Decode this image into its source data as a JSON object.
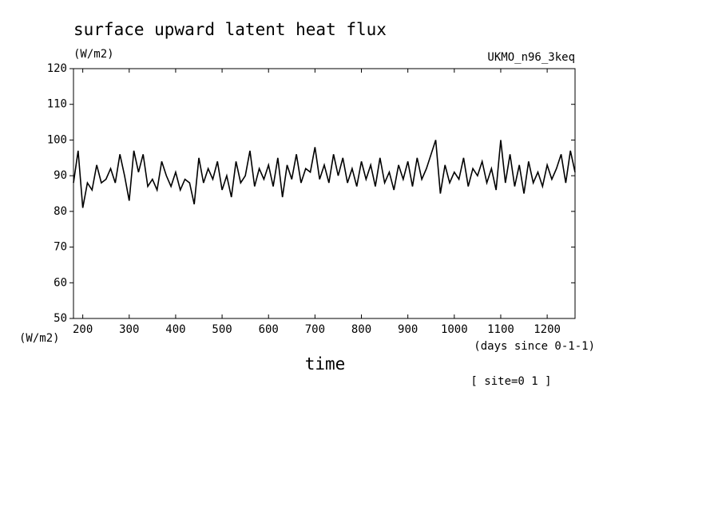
{
  "chart_data": {
    "type": "line",
    "title": "surface upward latent heat flux",
    "y_unit_top": "(W/m2)",
    "y_unit_bottom": "(W/m2)",
    "dataset": "UKMO_n96_3keq",
    "x_label": "time",
    "x_unit": "(days since 0-1-1)",
    "annotation": "[ site=0 1 ]",
    "xlim": [
      180,
      1260
    ],
    "ylim": [
      50,
      120
    ],
    "xticks": [
      200,
      300,
      400,
      500,
      600,
      700,
      800,
      900,
      1000,
      1100,
      1200
    ],
    "yticks": [
      50,
      60,
      70,
      80,
      90,
      100,
      110,
      120
    ],
    "series": [
      {
        "color": "#000000",
        "x": [
          180,
          190,
          200,
          210,
          220,
          230,
          240,
          250,
          260,
          270,
          280,
          290,
          300,
          310,
          320,
          330,
          340,
          350,
          360,
          370,
          380,
          390,
          400,
          410,
          420,
          430,
          440,
          450,
          460,
          470,
          480,
          490,
          500,
          510,
          520,
          530,
          540,
          550,
          560,
          570,
          580,
          590,
          600,
          610,
          620,
          630,
          640,
          650,
          660,
          670,
          680,
          690,
          700,
          710,
          720,
          730,
          740,
          750,
          760,
          770,
          780,
          790,
          800,
          810,
          820,
          830,
          840,
          850,
          860,
          870,
          880,
          890,
          900,
          910,
          920,
          930,
          940,
          950,
          960,
          970,
          980,
          990,
          1000,
          1010,
          1020,
          1030,
          1040,
          1050,
          1060,
          1070,
          1080,
          1090,
          1100,
          1110,
          1120,
          1130,
          1140,
          1150,
          1160,
          1170,
          1180,
          1190,
          1200,
          1210,
          1220,
          1230,
          1240,
          1250,
          1260
        ],
        "values": [
          88,
          97,
          81,
          88,
          86,
          93,
          88,
          89,
          92,
          88,
          96,
          90,
          83,
          97,
          91,
          96,
          87,
          89,
          86,
          94,
          90,
          87,
          91,
          86,
          89,
          88,
          82,
          95,
          88,
          92,
          89,
          94,
          86,
          90,
          84,
          94,
          88,
          90,
          97,
          87,
          92,
          89,
          93,
          87,
          95,
          84,
          93,
          89,
          96,
          88,
          92,
          91,
          98,
          89,
          93,
          88,
          96,
          90,
          95,
          88,
          92,
          87,
          94,
          89,
          93,
          87,
          95,
          88,
          91,
          86,
          93,
          89,
          94,
          87,
          95,
          89,
          92,
          96,
          100,
          85,
          93,
          88,
          91,
          89,
          95,
          87,
          92,
          90,
          94,
          88,
          92,
          86,
          100,
          88,
          96,
          87,
          93,
          85,
          94,
          88,
          91,
          87,
          93,
          89,
          92,
          96,
          88,
          97,
          91
        ]
      }
    ]
  }
}
